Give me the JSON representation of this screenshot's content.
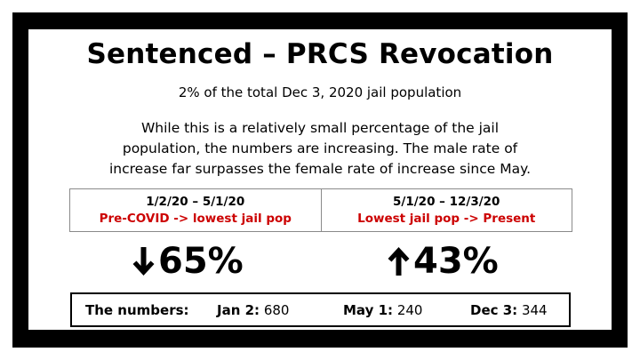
{
  "title": "Sentenced – PRCS Revocation",
  "subtitle": "2% of the total Dec 3, 2020 jail population",
  "body_lines": [
    "While this is a relatively small percentage of the jail",
    "population, the numbers are increasing. The male rate of",
    "increase far surpasses the female rate of increase since May."
  ],
  "periods": [
    {
      "range": "1/2/20 – 5/1/20",
      "description": "Pre-COVID -> lowest jail pop",
      "change": "65%",
      "direction": "down"
    },
    {
      "range": "5/1/20 – 12/3/20",
      "description": "Lowest jail pop -> Present",
      "change": "43%",
      "direction": "up"
    }
  ],
  "numbers": {
    "heading": "The numbers:",
    "items": [
      {
        "label": "Jan 2:",
        "value": "680"
      },
      {
        "label": "May 1:",
        "value": "240"
      },
      {
        "label": "Dec 3:",
        "value": "344"
      }
    ]
  },
  "colors": {
    "frame": "#000000",
    "highlight": "#cc0000"
  }
}
